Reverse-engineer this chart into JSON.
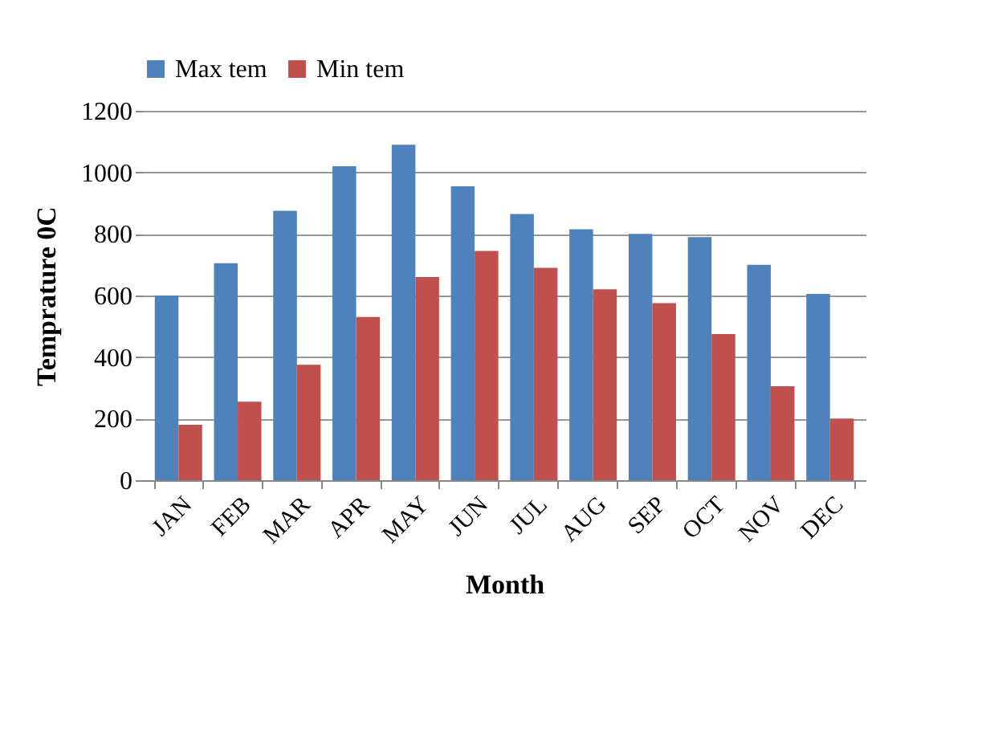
{
  "chart_data": {
    "type": "bar",
    "xlabel": "Month",
    "ylabel": "Temprature  0C",
    "categories": [
      "JAN",
      "FEB",
      "MAR",
      "APR",
      "MAY",
      "JUN",
      "JUL",
      "AUG",
      "SEP",
      "OCT",
      "NOV",
      "DEC"
    ],
    "series": [
      {
        "name": "Max tem",
        "color": "#4f81bd",
        "values": [
          600,
          705,
          875,
          1020,
          1090,
          955,
          865,
          815,
          800,
          790,
          700,
          605
        ]
      },
      {
        "name": "Min tem",
        "color": "#c0504d",
        "values": [
          180,
          255,
          375,
          530,
          660,
          745,
          690,
          620,
          575,
          475,
          305,
          200
        ]
      }
    ],
    "ylim": [
      0,
      1200
    ],
    "yticks": [
      0,
      200,
      400,
      600,
      800,
      1000,
      1200
    ],
    "grid": "y",
    "legend": "top"
  }
}
